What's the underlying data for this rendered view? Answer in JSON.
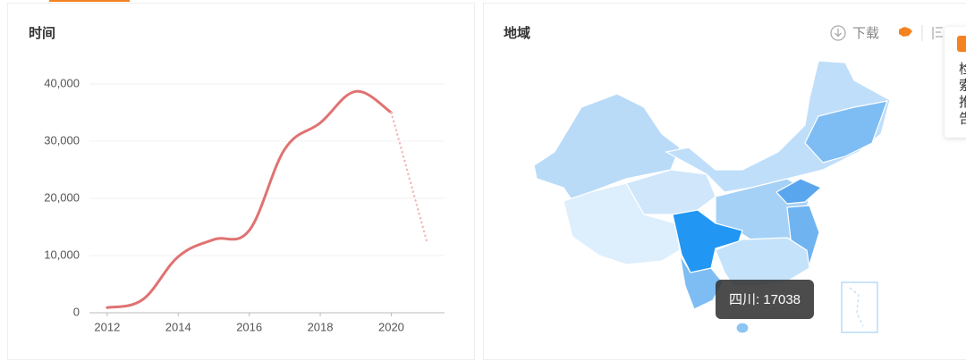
{
  "chart_data": {
    "type": "line",
    "title": "时间",
    "x": [
      2012,
      2013,
      2014,
      2015,
      2016,
      2017,
      2018,
      2019,
      2020,
      2021
    ],
    "series": [
      {
        "color": "#e07272",
        "style": "solid",
        "values": [
          900,
          2300,
          9800,
          12800,
          14400,
          28600,
          33200,
          38700,
          35000,
          null
        ]
      },
      {
        "color": "#f3b9b9",
        "style": "dotted",
        "values": [
          null,
          null,
          null,
          null,
          null,
          null,
          null,
          null,
          35000,
          12500
        ]
      }
    ],
    "xlim": [
      2011.5,
      2021.5
    ],
    "xticks": [
      2012,
      2014,
      2016,
      2018,
      2020
    ],
    "ylim": [
      0,
      40000
    ],
    "yticks": [
      0,
      {
        "value": 10000,
        "label": "10,000"
      },
      {
        "value": 20000,
        "label": "20,000"
      },
      {
        "value": 30000,
        "label": "30,000"
      },
      {
        "value": 40000,
        "label": "40,000"
      }
    ],
    "grid": true
  },
  "map_panel": {
    "title": "地域",
    "download": "下载",
    "tooltip": "四川: 17038"
  },
  "side_popup": {
    "lines": [
      "检",
      "索",
      "推",
      "告"
    ]
  }
}
